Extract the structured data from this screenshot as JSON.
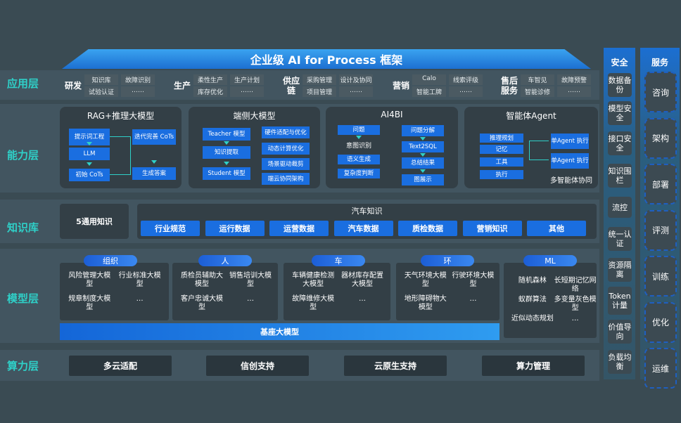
{
  "title": "企业级 AI for Process 框架",
  "layers": [
    "应用层",
    "能力层",
    "知识库",
    "模型层",
    "算力层"
  ],
  "app_groups": [
    {
      "name": "研发",
      "items": [
        "知识库",
        "故障识别",
        "试验认证",
        "……"
      ]
    },
    {
      "name": "生产",
      "items": [
        "柔性生产",
        "生产计划",
        "库存优化",
        "……"
      ]
    },
    {
      "name": "供应链",
      "items": [
        "采购管理",
        "设计及协同",
        "项目管理",
        "……"
      ]
    },
    {
      "name": "营销",
      "items": [
        "Calo",
        "线索评级",
        "智能工牌",
        "……"
      ]
    },
    {
      "name": "售后服务",
      "items": [
        "车智见",
        "故障预警",
        "智能诊修",
        "……"
      ]
    }
  ],
  "capability": {
    "rag": {
      "title": "RAG+推理大模型",
      "left": [
        "提示词工程",
        "LLM",
        "初始 CoTs"
      ],
      "right": [
        "迭代完善 CoTs",
        "生成答案"
      ]
    },
    "edge": {
      "title": "端侧大模型",
      "left": [
        "Teacher 模型",
        "知识提取",
        "Student 模型"
      ],
      "right": [
        "硬件适配与优化",
        "动态计算优化",
        "场景驱动裁剪",
        "端云协同架构"
      ]
    },
    "ai4bi": {
      "title": "AI4BI",
      "left": [
        "问题",
        "意图识别",
        "语义生成",
        "复杂度判断"
      ],
      "right": [
        "问题分解",
        "Text2SQL",
        "总结结果",
        "图展示"
      ]
    },
    "agent": {
      "title": "智能体Agent",
      "left": [
        "推理规划",
        "记忆",
        "工具",
        "执行"
      ],
      "right": [
        "单Agent 执行",
        "单Agent 执行"
      ],
      "footer": "多智能体协同"
    }
  },
  "knowledge": {
    "general": "5通用知识",
    "auto_title": "汽车知识",
    "chips": [
      "行业规范",
      "运行数据",
      "运营数据",
      "汽车数据",
      "质检数据",
      "营销知识",
      "其他"
    ]
  },
  "models": [
    {
      "pill": "组织",
      "items": [
        "风险管理大模型",
        "行业标准大模型",
        "规章制度大模型",
        "…"
      ]
    },
    {
      "pill": "人",
      "items": [
        "质检员辅助大模型",
        "销售培训大模型",
        "客户忠诚大模型",
        "…"
      ]
    },
    {
      "pill": "车",
      "items": [
        "车辆健康检测大模型",
        "器材库存配置大模型",
        "故障维修大模型",
        "…"
      ]
    },
    {
      "pill": "环",
      "items": [
        "天气环境大模型",
        "行驶环境大模型",
        "地形障碍物大模型",
        "…"
      ]
    },
    {
      "pill": "ML",
      "items": [
        "随机森林",
        "长短期记忆网络",
        "蚁群算法",
        "多变量灰色模型",
        "近似动态规划",
        "…"
      ]
    }
  ],
  "base_model": "基座大模型",
  "compute": [
    "多云适配",
    "信创支持",
    "云原生支持",
    "算力管理"
  ],
  "security": {
    "title": "安全",
    "items": [
      "数据备份",
      "模型安全",
      "接口安全",
      "知识围栏",
      "流控",
      "统一认证",
      "资源隔离",
      "Token计量",
      "价值导向",
      "负载均衡"
    ]
  },
  "service": {
    "title": "服务",
    "items": [
      "咨询",
      "架构",
      "部署",
      "评测",
      "训练",
      "优化",
      "运维"
    ]
  },
  "colors": {
    "background": "#3a4b53",
    "accent_blue": "#1a6ee0",
    "layer_label": "#2fd0c8"
  }
}
